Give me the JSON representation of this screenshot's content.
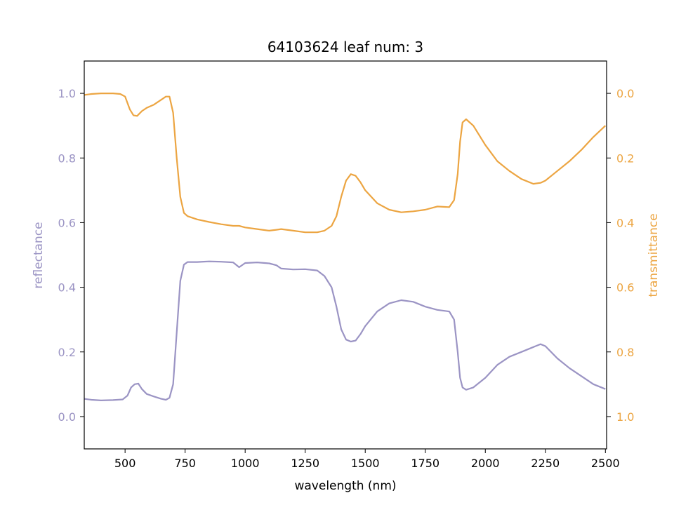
{
  "chart_data": {
    "type": "line",
    "title": "64103624 leaf num: 3",
    "xlabel": "wavelength (nm)",
    "ylabel_left": "reflectance",
    "ylabel_right": "transmittance",
    "xlim": [
      330,
      2505
    ],
    "ylim_left": [
      -0.1,
      1.1
    ],
    "ylim_right": [
      1.1,
      -0.1
    ],
    "x_ticks": [
      "500",
      "750",
      "1000",
      "1250",
      "1500",
      "1750",
      "2000",
      "2250",
      "2500"
    ],
    "y_ticks_left": [
      "0.0",
      "0.2",
      "0.4",
      "0.6",
      "0.8",
      "1.0"
    ],
    "y_ticks_right": [
      "0.0",
      "0.2",
      "0.4",
      "0.6",
      "0.8",
      "1.0"
    ],
    "grid": false,
    "colors": {
      "reflectance": "#9b94c4",
      "transmittance": "#eca542"
    },
    "series": [
      {
        "name": "reflectance",
        "axis": "left",
        "x": [
          330,
          360,
          400,
          450,
          490,
          510,
          525,
          540,
          555,
          570,
          590,
          620,
          650,
          670,
          685,
          700,
          715,
          730,
          745,
          760,
          800,
          850,
          900,
          950,
          975,
          1000,
          1050,
          1100,
          1130,
          1150,
          1200,
          1250,
          1300,
          1330,
          1360,
          1380,
          1400,
          1420,
          1440,
          1460,
          1480,
          1500,
          1550,
          1600,
          1650,
          1700,
          1750,
          1800,
          1850,
          1870,
          1885,
          1895,
          1905,
          1920,
          1950,
          2000,
          2050,
          2100,
          2150,
          2200,
          2230,
          2250,
          2300,
          2350,
          2400,
          2450,
          2500
        ],
        "y": [
          0.055,
          0.052,
          0.05,
          0.051,
          0.053,
          0.065,
          0.09,
          0.1,
          0.102,
          0.085,
          0.07,
          0.062,
          0.055,
          0.052,
          0.058,
          0.1,
          0.26,
          0.42,
          0.47,
          0.478,
          0.478,
          0.48,
          0.479,
          0.477,
          0.462,
          0.475,
          0.477,
          0.474,
          0.468,
          0.458,
          0.455,
          0.456,
          0.452,
          0.435,
          0.4,
          0.34,
          0.27,
          0.238,
          0.232,
          0.235,
          0.255,
          0.28,
          0.325,
          0.35,
          0.36,
          0.355,
          0.34,
          0.33,
          0.325,
          0.3,
          0.2,
          0.12,
          0.09,
          0.083,
          0.09,
          0.12,
          0.16,
          0.185,
          0.2,
          0.215,
          0.224,
          0.218,
          0.18,
          0.15,
          0.125,
          0.1,
          0.085
        ]
      },
      {
        "name": "transmittance",
        "axis": "right",
        "x": [
          330,
          360,
          400,
          450,
          480,
          500,
          520,
          535,
          550,
          570,
          590,
          620,
          650,
          670,
          685,
          700,
          715,
          730,
          745,
          760,
          800,
          850,
          900,
          950,
          975,
          1000,
          1050,
          1100,
          1130,
          1150,
          1200,
          1250,
          1300,
          1330,
          1360,
          1380,
          1400,
          1420,
          1440,
          1460,
          1480,
          1500,
          1550,
          1600,
          1650,
          1700,
          1750,
          1800,
          1850,
          1870,
          1885,
          1895,
          1905,
          1920,
          1950,
          2000,
          2050,
          2100,
          2150,
          2200,
          2230,
          2250,
          2300,
          2350,
          2400,
          2450,
          2500
        ],
        "y": [
          0.005,
          0.002,
          0.0,
          0.0,
          0.002,
          0.01,
          0.05,
          0.068,
          0.07,
          0.055,
          0.045,
          0.035,
          0.02,
          0.01,
          0.01,
          0.06,
          0.2,
          0.32,
          0.37,
          0.38,
          0.39,
          0.398,
          0.405,
          0.41,
          0.41,
          0.415,
          0.42,
          0.425,
          0.422,
          0.42,
          0.425,
          0.43,
          0.43,
          0.425,
          0.41,
          0.38,
          0.32,
          0.27,
          0.25,
          0.255,
          0.275,
          0.3,
          0.34,
          0.36,
          0.368,
          0.365,
          0.36,
          0.35,
          0.352,
          0.33,
          0.25,
          0.15,
          0.09,
          0.08,
          0.1,
          0.16,
          0.21,
          0.24,
          0.265,
          0.28,
          0.277,
          0.27,
          0.24,
          0.21,
          0.175,
          0.135,
          0.1
        ]
      }
    ]
  }
}
